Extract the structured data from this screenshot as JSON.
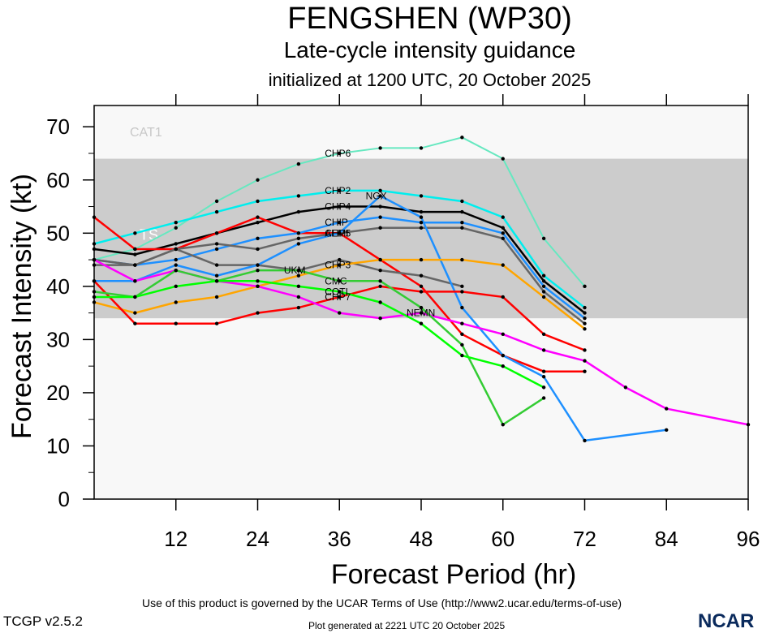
{
  "header": {
    "title": "FENGSHEN (WP30)",
    "subtitle": "Late-cycle intensity guidance",
    "init": "initialized at 1200 UTC, 20 October 2025"
  },
  "footer": {
    "terms": "Use of this product is governed by the UCAR Terms of Use (http://www2.ucar.edu/terms-of-use)",
    "generated": "Plot generated at 2221 UTC   20 October 2025",
    "version": "TCGP v2.5.2",
    "logo": "NCAR"
  },
  "chart_data": {
    "type": "line",
    "title": "FENGSHEN (WP30)",
    "xlabel": "Forecast Period (hr)",
    "ylabel": "Forecast Intensity (kt)",
    "xlim": [
      0,
      96
    ],
    "ylim": [
      0,
      74
    ],
    "xticks": [
      12,
      24,
      36,
      48,
      60,
      72,
      84,
      96
    ],
    "yticks": [
      0,
      10,
      20,
      30,
      40,
      50,
      60,
      70
    ],
    "bands": [
      {
        "label": "TS",
        "from": 34,
        "to": 64,
        "color": "#cccccc",
        "label_color": "#ffffff"
      },
      {
        "label": "CAT1",
        "from": 64,
        "to": 74,
        "color": "#f8f8f8",
        "label_color": "#c8c8c8"
      }
    ],
    "series": [
      {
        "name": "CHP6",
        "color": "#66e8c0",
        "x": [
          0,
          6,
          12,
          18,
          24,
          30,
          36,
          42,
          48,
          54,
          60,
          66,
          72
        ],
        "values": [
          45,
          47,
          51,
          56,
          60,
          63,
          65,
          66,
          66,
          68,
          64,
          49,
          40
        ]
      },
      {
        "name": "CHP2",
        "color": "#00eeee",
        "x": [
          0,
          6,
          12,
          18,
          24,
          30,
          36,
          42,
          48,
          54,
          60,
          66,
          72
        ],
        "values": [
          48,
          50,
          52,
          54,
          56,
          57,
          58,
          58,
          57,
          56,
          53,
          42,
          36
        ]
      },
      {
        "name": "CHP4",
        "color": "#000000",
        "x": [
          0,
          6,
          12,
          18,
          24,
          30,
          36,
          42,
          48,
          54,
          60,
          66,
          72
        ],
        "values": [
          47,
          46,
          48,
          50,
          52,
          54,
          55,
          55,
          54,
          54,
          51,
          41,
          35
        ]
      },
      {
        "name": "AEMI",
        "color": "#ff0000",
        "x": [
          0,
          6,
          12,
          18,
          24,
          30,
          36,
          42,
          48,
          54,
          60,
          66,
          72
        ],
        "values": [
          53,
          47,
          47,
          50,
          53,
          50,
          50,
          45,
          40,
          31,
          27,
          24,
          24
        ]
      },
      {
        "name": "CHIP",
        "color": "#1e90ff",
        "x": [
          0,
          6,
          12,
          18,
          24,
          30,
          36,
          42,
          48,
          54,
          60,
          66,
          72
        ],
        "values": [
          45,
          44,
          45,
          47,
          49,
          50,
          52,
          53,
          52,
          52,
          50,
          40,
          34
        ]
      },
      {
        "name": "CHP5",
        "color": "#666666",
        "x": [
          0,
          6,
          12,
          18,
          24,
          30,
          36,
          42,
          48,
          54,
          60,
          66,
          72
        ],
        "values": [
          45,
          44,
          47,
          48,
          47,
          49,
          50,
          51,
          51,
          51,
          49,
          39,
          33
        ]
      },
      {
        "name": "UKM",
        "color": "#666666",
        "x": [
          0,
          6,
          12,
          18,
          24,
          30,
          36,
          42,
          48,
          54
        ],
        "values": [
          44,
          44,
          47,
          44,
          44,
          43,
          45,
          43,
          42,
          40
        ]
      },
      {
        "name": "NGX",
        "color": "#1e90ff",
        "x": [
          0,
          6,
          12,
          18,
          24,
          30,
          36,
          42,
          48,
          54,
          60,
          66,
          72,
          84
        ],
        "values": [
          41,
          41,
          44,
          42,
          44,
          48,
          50,
          57,
          53,
          36,
          27,
          23,
          11,
          13
        ]
      },
      {
        "name": "CHP3",
        "color": "#ffa500",
        "x": [
          0,
          6,
          12,
          18,
          24,
          30,
          36,
          42,
          48,
          54,
          60,
          66,
          72
        ],
        "values": [
          37,
          35,
          37,
          38,
          40,
          42,
          44,
          45,
          45,
          45,
          44,
          38,
          32
        ]
      },
      {
        "name": "CHP7",
        "color": "#ff0000",
        "x": [
          0,
          6,
          12,
          18,
          24,
          30,
          36,
          42,
          48,
          54,
          60,
          66,
          72
        ],
        "values": [
          41,
          33,
          33,
          33,
          35,
          36,
          38,
          40,
          39,
          39,
          38,
          31,
          28
        ]
      },
      {
        "name": "NEMN",
        "color": "#ff00ff",
        "x": [
          0,
          6,
          12,
          18,
          24,
          30,
          36,
          42,
          48,
          54,
          60,
          66,
          72,
          78,
          84,
          96
        ],
        "values": [
          45,
          41,
          43,
          41,
          40,
          38,
          35,
          34,
          35,
          33,
          31,
          28,
          26,
          21,
          17,
          14
        ]
      },
      {
        "name": "CMC",
        "color": "#33cc33",
        "x": [
          0,
          6,
          12,
          18,
          24,
          30,
          36,
          42,
          48,
          54,
          60,
          66
        ],
        "values": [
          39,
          38,
          43,
          41,
          43,
          43,
          41,
          41,
          36,
          29,
          14,
          19
        ]
      },
      {
        "name": "COTI",
        "color": "#00ff00",
        "x": [
          0,
          6,
          12,
          18,
          24,
          30,
          36,
          42,
          48,
          54,
          60,
          66
        ],
        "values": [
          38,
          38,
          40,
          41,
          41,
          40,
          39,
          37,
          33,
          27,
          25,
          21
        ]
      }
    ]
  }
}
